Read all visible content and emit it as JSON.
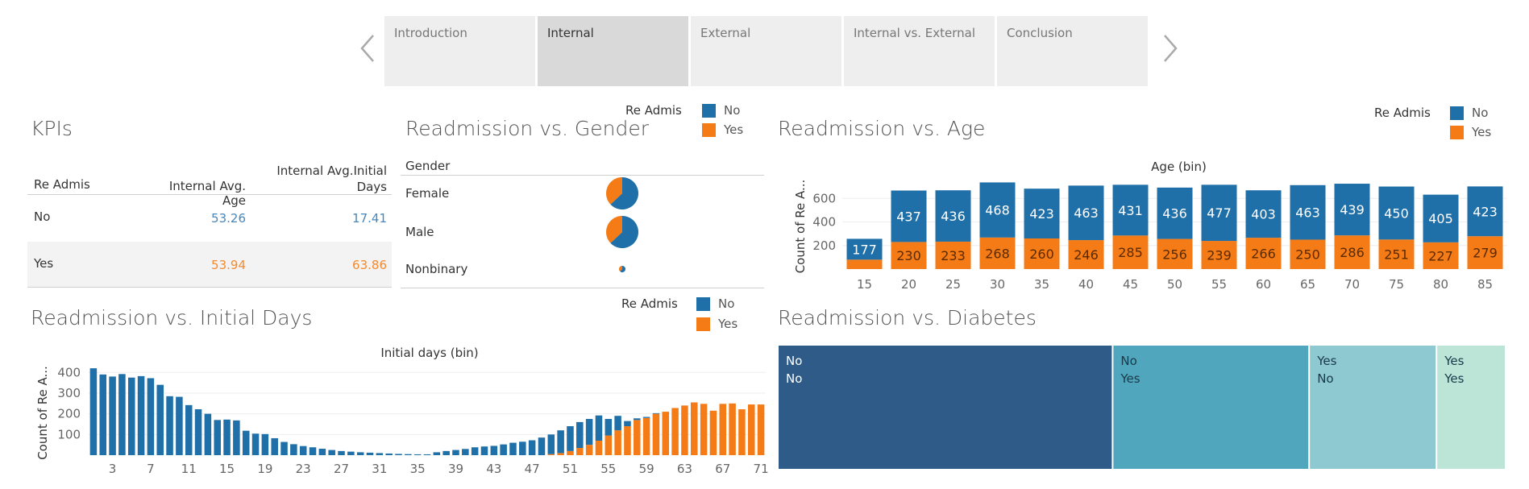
{
  "nav": {
    "tabs": [
      {
        "label": "Introduction",
        "active": false
      },
      {
        "label": "Internal",
        "active": true
      },
      {
        "label": "External",
        "active": false
      },
      {
        "label": "Internal vs. External",
        "active": false
      },
      {
        "label": "Conclusion",
        "active": false
      }
    ],
    "prev_icon": "chevron-left-icon",
    "next_icon": "chevron-right-icon"
  },
  "colors": {
    "no": "#1f6fa8",
    "yes": "#f47b16"
  },
  "legend": {
    "title": "Re Admis",
    "no": "No",
    "yes": "Yes"
  },
  "kpis": {
    "title": "KPIs",
    "col_readmis": "Re Admis",
    "col_age": "Internal Avg. Age",
    "col_days_line1": "Internal Avg.Initial",
    "col_days_line2": "Days",
    "rows": [
      {
        "label": "No",
        "age": "53.26",
        "days": "17.41"
      },
      {
        "label": "Yes",
        "age": "53.94",
        "days": "63.86"
      }
    ]
  },
  "chart_data": [
    {
      "type": "pie",
      "title": "Readmission vs. Gender",
      "row_header": "Gender",
      "categories": [
        "Female",
        "Male",
        "Nonbinary"
      ],
      "series": [
        {
          "name": "No",
          "values": [
            63,
            63,
            62
          ]
        },
        {
          "name": "Yes",
          "values": [
            37,
            37,
            38
          ]
        }
      ],
      "relative_size": [
        1.0,
        1.0,
        0.2
      ]
    },
    {
      "type": "bar",
      "title": "Readmission vs. Age",
      "xlabel": "Age (bin)",
      "ylabel": "Count of Re A...",
      "categories": [
        "15",
        "20",
        "25",
        "30",
        "35",
        "40",
        "45",
        "50",
        "55",
        "60",
        "65",
        "70",
        "75",
        "80",
        "85"
      ],
      "series": [
        {
          "name": "Yes",
          "values": [
            80,
            230,
            233,
            268,
            260,
            246,
            285,
            256,
            239,
            266,
            250,
            286,
            251,
            227,
            279
          ]
        },
        {
          "name": "No",
          "values": [
            177,
            437,
            436,
            468,
            423,
            463,
            431,
            436,
            477,
            403,
            463,
            439,
            450,
            405,
            423
          ]
        }
      ],
      "y_ticks": [
        200,
        400,
        600
      ],
      "ylim": [
        0,
        780
      ],
      "stacked": true
    },
    {
      "type": "bar",
      "title": "Readmission vs. Initial Days",
      "xlabel": "Initial days (bin)",
      "ylabel": "Count of Re A...",
      "x": [
        1,
        2,
        3,
        4,
        5,
        6,
        7,
        8,
        9,
        10,
        11,
        12,
        13,
        14,
        15,
        16,
        17,
        18,
        19,
        20,
        21,
        22,
        23,
        24,
        25,
        26,
        27,
        28,
        29,
        30,
        31,
        32,
        33,
        34,
        35,
        36,
        37,
        38,
        39,
        40,
        41,
        42,
        43,
        44,
        45,
        46,
        47,
        48,
        49,
        50,
        51,
        52,
        53,
        54,
        55,
        56,
        57,
        58,
        59,
        60,
        61,
        62,
        63,
        64,
        65,
        66,
        67,
        68,
        69,
        70,
        71
      ],
      "x_tick_labels": [
        "3",
        "7",
        "11",
        "15",
        "19",
        "23",
        "27",
        "31",
        "35",
        "39",
        "43",
        "47",
        "51",
        "55",
        "59",
        "63",
        "67",
        "71"
      ],
      "series": [
        {
          "name": "No",
          "values": [
            420,
            390,
            380,
            392,
            375,
            382,
            372,
            340,
            285,
            282,
            242,
            222,
            200,
            170,
            172,
            168,
            118,
            104,
            102,
            82,
            64,
            53,
            44,
            38,
            31,
            25,
            20,
            17,
            14,
            12,
            10,
            8,
            6,
            5,
            4,
            4,
            14,
            20,
            25,
            30,
            38,
            42,
            45,
            52,
            60,
            65,
            72,
            85,
            95,
            110,
            120,
            125,
            125,
            122,
            80,
            70,
            25,
            8,
            5,
            3,
            0,
            0,
            0,
            0,
            0,
            0,
            0,
            0,
            0,
            0,
            0
          ]
        },
        {
          "name": "Yes",
          "values": [
            0,
            0,
            0,
            0,
            0,
            0,
            0,
            0,
            0,
            0,
            0,
            0,
            0,
            0,
            0,
            0,
            0,
            0,
            0,
            0,
            0,
            0,
            0,
            0,
            0,
            0,
            0,
            0,
            0,
            0,
            0,
            0,
            0,
            0,
            0,
            0,
            0,
            0,
            0,
            0,
            0,
            0,
            0,
            0,
            0,
            0,
            0,
            0,
            5,
            10,
            20,
            35,
            50,
            70,
            95,
            120,
            140,
            170,
            180,
            200,
            210,
            228,
            240,
            255,
            248,
            215,
            248,
            250,
            222,
            245,
            245
          ]
        }
      ],
      "y_ticks": [
        100,
        200,
        300,
        400
      ],
      "ylim": [
        0,
        440
      ],
      "stacked": true
    },
    {
      "type": "treemap",
      "title": "Readmission vs. Diabetes",
      "cells": [
        {
          "line1": "No",
          "line2": "No",
          "value": 46,
          "color": "#2e5b87",
          "text_color": "#ffffff"
        },
        {
          "line1": "No",
          "line2": "Yes",
          "value": 27,
          "color": "#4fa6bd",
          "text_color": "#1a3a4a"
        },
        {
          "line1": "Yes",
          "line2": "No",
          "value": 17.5,
          "color": "#8ec8d0",
          "text_color": "#1a3a4a"
        },
        {
          "line1": "Yes",
          "line2": "Yes",
          "value": 9.5,
          "color": "#bce5d8",
          "text_color": "#1a3a4a"
        }
      ]
    }
  ]
}
